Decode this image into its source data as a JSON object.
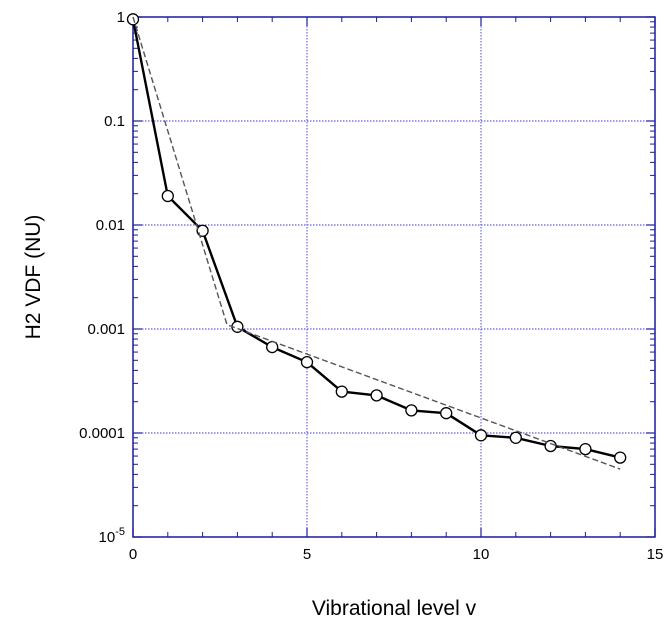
{
  "chart_data": {
    "type": "line",
    "title": "",
    "xlabel": "Vibrational level v",
    "ylabel": "H2 VDF (NU)",
    "xlim": [
      0,
      15
    ],
    "ylim": [
      1e-05,
      1
    ],
    "yscale": "log",
    "grid": true,
    "legend": "none",
    "x_ticks": [
      {
        "value": 0,
        "label": "0"
      },
      {
        "value": 5,
        "label": "5"
      },
      {
        "value": 10,
        "label": "10"
      },
      {
        "value": 15,
        "label": "15"
      }
    ],
    "y_ticks": [
      {
        "value": 1,
        "label": "1",
        "sup": ""
      },
      {
        "value": 0.1,
        "label": "0.1",
        "sup": ""
      },
      {
        "value": 0.01,
        "label": "0.01",
        "sup": ""
      },
      {
        "value": 0.001,
        "label": "0.001",
        "sup": ""
      },
      {
        "value": 0.0001,
        "label": "0.0001",
        "sup": ""
      },
      {
        "value": 1e-05,
        "label": "10",
        "sup": "-5"
      }
    ],
    "series": [
      {
        "style": "solid-with-circle-markers",
        "color": "#000000",
        "x": [
          0,
          1,
          2,
          3,
          4,
          5,
          6,
          7,
          8,
          9,
          10,
          11,
          12,
          13,
          14
        ],
        "y": [
          0.95,
          0.019,
          0.0088,
          0.00105,
          0.00067,
          0.00048,
          0.00025,
          0.00023,
          0.000165,
          0.000155,
          9.5e-05,
          9e-05,
          7.5e-05,
          7e-05,
          5.8e-05
        ]
      },
      {
        "style": "dashed",
        "color": "#555555",
        "x": [
          0,
          2.7,
          14
        ],
        "y": [
          1,
          0.0011,
          4.5e-05
        ]
      }
    ],
    "colors": {
      "axis": "#1a1aa0",
      "grid": "#3a3adc",
      "line": "#000000",
      "fit": "#555555"
    }
  }
}
